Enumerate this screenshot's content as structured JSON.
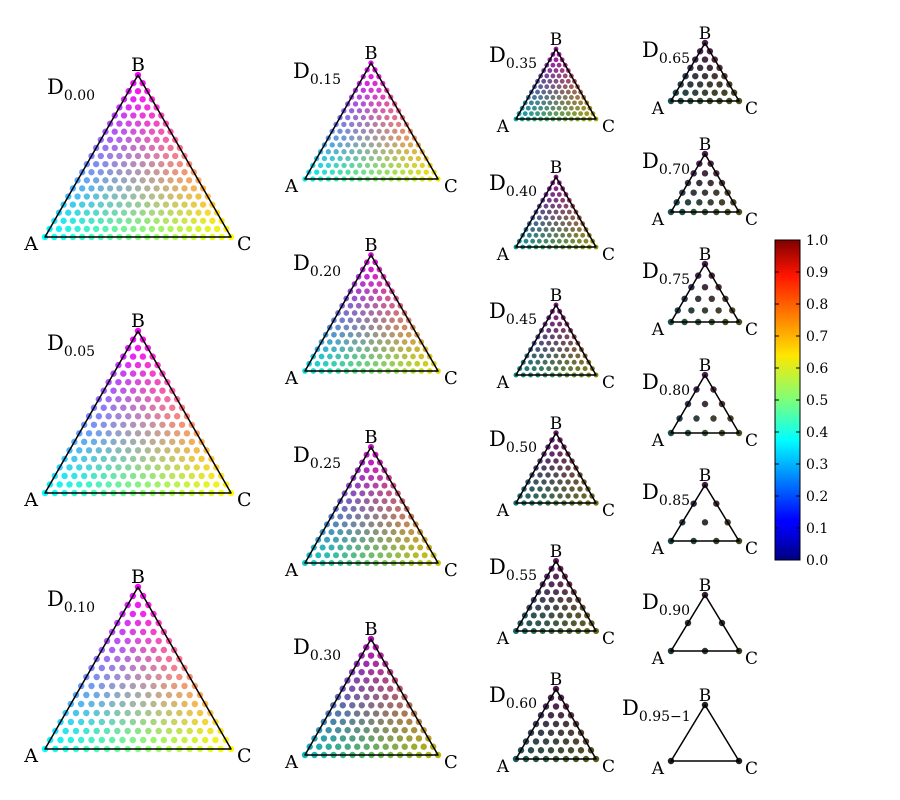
{
  "chart_data": {
    "type": "scatter",
    "title": "",
    "vertex_labels": [
      "A",
      "B",
      "C"
    ],
    "panels": [
      {
        "label": "D",
        "sub": "0.00",
        "n": 20,
        "darkness": 0.0
      },
      {
        "label": "D",
        "sub": "0.05",
        "n": 19,
        "darkness": 0.0
      },
      {
        "label": "D",
        "sub": "0.10",
        "n": 18,
        "darkness": 0.0
      },
      {
        "label": "D",
        "sub": "0.15",
        "n": 17,
        "darkness": 0.08
      },
      {
        "label": "D",
        "sub": "0.20",
        "n": 16,
        "darkness": 0.16
      },
      {
        "label": "D",
        "sub": "0.25",
        "n": 15,
        "darkness": 0.24
      },
      {
        "label": "D",
        "sub": "0.30",
        "n": 14,
        "darkness": 0.32
      },
      {
        "label": "D",
        "sub": "0.35",
        "n": 13,
        "darkness": 0.4
      },
      {
        "label": "D",
        "sub": "0.40",
        "n": 12,
        "darkness": 0.48
      },
      {
        "label": "D",
        "sub": "0.45",
        "n": 11,
        "darkness": 0.56
      },
      {
        "label": "D",
        "sub": "0.50",
        "n": 10,
        "darkness": 0.64
      },
      {
        "label": "D",
        "sub": "0.55",
        "n": 9,
        "darkness": 0.7
      },
      {
        "label": "D",
        "sub": "0.60",
        "n": 8,
        "darkness": 0.76
      },
      {
        "label": "D",
        "sub": "0.65",
        "n": 7,
        "darkness": 0.8
      },
      {
        "label": "D",
        "sub": "0.70",
        "n": 6,
        "darkness": 0.8
      },
      {
        "label": "D",
        "sub": "0.75",
        "n": 5,
        "darkness": 0.8
      },
      {
        "label": "D",
        "sub": "0.80",
        "n": 4,
        "darkness": 0.8
      },
      {
        "label": "D",
        "sub": "0.85",
        "n": 3,
        "darkness": 0.85
      },
      {
        "label": "D",
        "sub": "0.90",
        "n": 2,
        "darkness": 0.9
      },
      {
        "label": "D",
        "sub": "0.95−1",
        "n": 1,
        "darkness": 1.0
      }
    ],
    "colorbar": {
      "colormap": "jet",
      "ticks": [
        "0.0",
        "0.1",
        "0.2",
        "0.3",
        "0.4",
        "0.5",
        "0.6",
        "0.7",
        "0.8",
        "0.9",
        "1.0"
      ],
      "range": [
        0,
        1
      ]
    },
    "colors": {
      "A": "#00ffff",
      "B": "#ff00ff",
      "C": "#ffff00",
      "dark": "#202020",
      "edge": "#000000"
    }
  }
}
